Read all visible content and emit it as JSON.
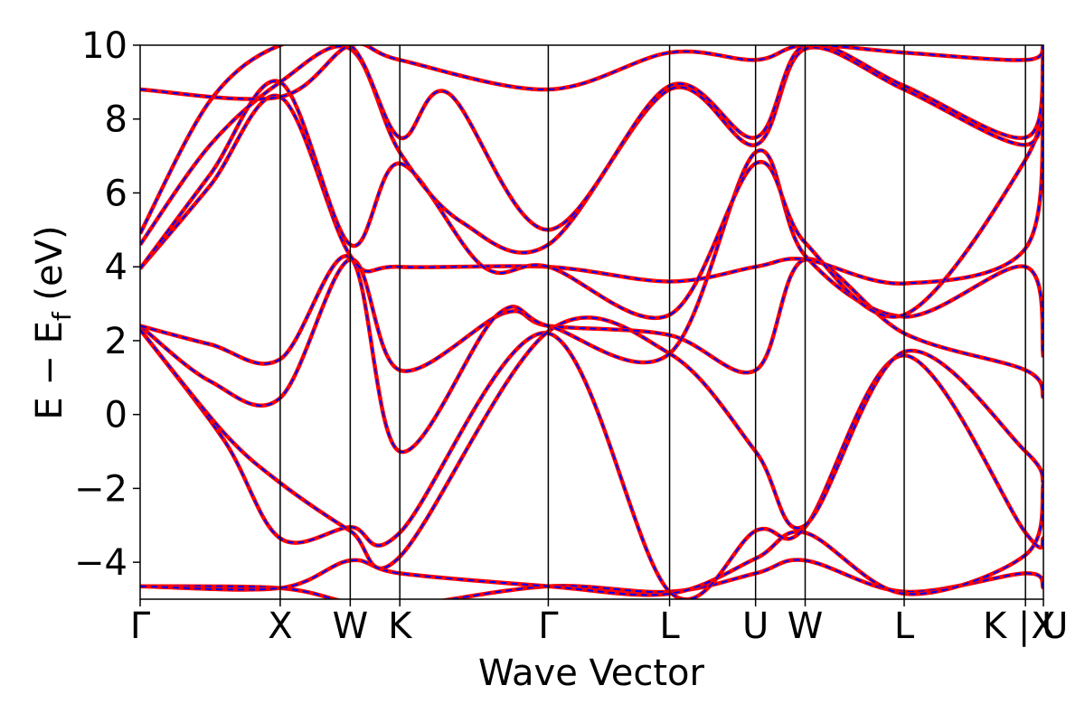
{
  "chart_data": {
    "type": "line",
    "title": "",
    "xlabel": "Wave Vector",
    "ylabel_parts": {
      "main": "E − E",
      "subscript": "f",
      "unit": " (eV)"
    },
    "x_ticks": [
      "Γ",
      "X",
      "W",
      "K",
      "Γ",
      "L",
      "U",
      "W",
      "L",
      "K | U",
      "X"
    ],
    "x_tick_positions": [
      0.0,
      1.0,
      1.5,
      1.854,
      2.914,
      3.78,
      4.394,
      4.748,
      5.455,
      6.321,
      6.449
    ],
    "xlim": [
      0.0,
      6.449
    ],
    "ylim": [
      -5,
      10
    ],
    "y_ticks": [
      -4,
      -2,
      0,
      2,
      4,
      6,
      8,
      10
    ],
    "y_tick_labels": [
      "−4",
      "−2",
      "0",
      "2",
      "4",
      "6",
      "8",
      "10"
    ],
    "grid": false,
    "legend": "none",
    "series_styles": [
      {
        "color": "#ff0000",
        "style": "solid"
      },
      {
        "color": "#0000ff",
        "style": "dashed"
      }
    ],
    "bands": [
      [
        [
          0.0,
          -4.65
        ],
        [
          1.0,
          -4.7
        ],
        [
          1.5,
          -5.1
        ],
        [
          1.854,
          -5.2
        ],
        [
          2.914,
          -4.65
        ],
        [
          3.78,
          -4.8
        ],
        [
          4.394,
          -4.3
        ],
        [
          4.748,
          -3.95
        ],
        [
          5.455,
          -4.8
        ],
        [
          6.321,
          -4.3
        ],
        [
          6.449,
          -4.7
        ]
      ],
      [
        [
          0.0,
          -4.65
        ],
        [
          1.0,
          -4.7
        ],
        [
          1.5,
          -3.95
        ],
        [
          1.854,
          -4.3
        ],
        [
          2.914,
          -4.65
        ],
        [
          3.78,
          -4.85
        ],
        [
          4.394,
          -3.9
        ],
        [
          4.748,
          -3.2
        ],
        [
          5.455,
          -4.85
        ],
        [
          6.321,
          -3.8
        ],
        [
          6.449,
          -1.85
        ]
      ],
      [
        [
          0.0,
          2.3
        ],
        [
          0.6,
          -0.7
        ],
        [
          1.0,
          -3.35
        ],
        [
          1.5,
          -3.05
        ],
        [
          1.854,
          -3.2
        ],
        [
          2.914,
          2.2
        ],
        [
          3.78,
          -4.8
        ],
        [
          4.394,
          -3.15
        ],
        [
          4.748,
          -3.05
        ],
        [
          5.455,
          1.6
        ],
        [
          6.321,
          -3.2
        ],
        [
          6.449,
          -3.35
        ]
      ],
      [
        [
          0.0,
          2.3
        ],
        [
          0.6,
          -0.5
        ],
        [
          1.0,
          -1.85
        ],
        [
          1.5,
          -3.15
        ],
        [
          1.854,
          -3.85
        ],
        [
          2.914,
          2.25
        ],
        [
          3.78,
          1.65
        ],
        [
          4.394,
          -1.0
        ],
        [
          4.748,
          -3.0
        ],
        [
          5.455,
          1.7
        ],
        [
          6.321,
          -1.0
        ],
        [
          6.449,
          -1.85
        ]
      ],
      [
        [
          0.0,
          2.4
        ],
        [
          0.5,
          0.9
        ],
        [
          1.0,
          0.45
        ],
        [
          1.5,
          4.2
        ],
        [
          1.854,
          1.2
        ],
        [
          2.6,
          2.75
        ],
        [
          2.914,
          2.4
        ],
        [
          3.78,
          2.15
        ],
        [
          4.394,
          1.2
        ],
        [
          4.748,
          4.2
        ],
        [
          5.455,
          2.2
        ],
        [
          6.321,
          1.2
        ],
        [
          6.449,
          0.45
        ]
      ],
      [
        [
          0.0,
          2.4
        ],
        [
          0.5,
          1.9
        ],
        [
          1.0,
          1.5
        ],
        [
          1.5,
          4.25
        ],
        [
          1.854,
          -1.0
        ],
        [
          2.55,
          2.7
        ],
        [
          2.914,
          2.4
        ],
        [
          3.78,
          1.65
        ],
        [
          4.394,
          7.1
        ],
        [
          4.748,
          4.3
        ],
        [
          5.455,
          2.65
        ],
        [
          6.321,
          4.0
        ],
        [
          6.449,
          1.55
        ]
      ],
      [
        [
          0.0,
          3.95
        ],
        [
          0.5,
          6.2
        ],
        [
          1.0,
          8.6
        ],
        [
          1.5,
          4.3
        ],
        [
          1.854,
          4.0
        ],
        [
          2.914,
          4.0
        ],
        [
          3.78,
          3.6
        ],
        [
          4.394,
          4.0
        ],
        [
          4.748,
          4.2
        ],
        [
          5.455,
          3.55
        ],
        [
          6.321,
          4.5
        ],
        [
          6.449,
          8.55
        ]
      ],
      [
        [
          0.0,
          3.95
        ],
        [
          0.5,
          6.5
        ],
        [
          1.0,
          9.0
        ],
        [
          1.5,
          4.6
        ],
        [
          1.854,
          6.8
        ],
        [
          2.45,
          4.0
        ],
        [
          2.914,
          4.0
        ],
        [
          3.78,
          2.7
        ],
        [
          4.394,
          6.8
        ],
        [
          4.748,
          4.65
        ],
        [
          5.455,
          2.7
        ],
        [
          6.321,
          6.9
        ],
        [
          6.449,
          9.0
        ]
      ],
      [
        [
          0.0,
          4.6
        ],
        [
          0.5,
          7.3
        ],
        [
          1.0,
          9.0
        ],
        [
          1.5,
          9.9
        ],
        [
          1.854,
          7.1
        ],
        [
          2.3,
          5.2
        ],
        [
          2.914,
          4.6
        ],
        [
          3.78,
          8.8
        ],
        [
          4.394,
          7.3
        ],
        [
          4.748,
          9.9
        ],
        [
          5.455,
          8.8
        ],
        [
          6.321,
          7.3
        ],
        [
          6.449,
          9.0
        ]
      ],
      [
        [
          0.0,
          4.9
        ],
        [
          0.5,
          8.5
        ],
        [
          1.0,
          10.0
        ],
        [
          1.5,
          10.0
        ],
        [
          1.854,
          7.5
        ],
        [
          2.2,
          8.7
        ],
        [
          2.914,
          5.0
        ],
        [
          3.78,
          8.9
        ],
        [
          4.394,
          7.5
        ],
        [
          4.748,
          10.0
        ],
        [
          5.455,
          8.9
        ],
        [
          6.321,
          7.5
        ],
        [
          6.449,
          9.8
        ]
      ],
      [
        [
          0.0,
          8.8
        ],
        [
          1.0,
          8.6
        ],
        [
          1.5,
          10.0
        ],
        [
          1.854,
          9.6
        ],
        [
          2.914,
          8.8
        ],
        [
          3.78,
          9.8
        ],
        [
          4.394,
          9.6
        ],
        [
          4.748,
          10.0
        ],
        [
          5.455,
          9.8
        ],
        [
          6.321,
          9.6
        ],
        [
          6.449,
          10.0
        ]
      ]
    ]
  }
}
